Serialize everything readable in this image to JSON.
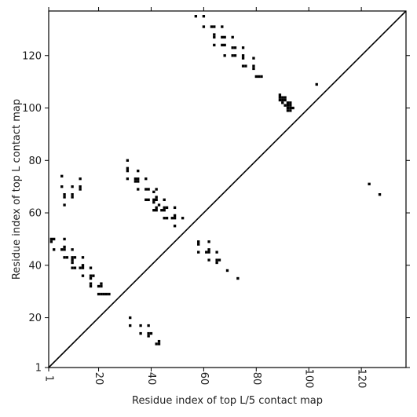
{
  "chart_data": {
    "type": "scatter",
    "xlabel": "Residue index of top L/5 contact map",
    "ylabel": "Residue index of top L contact map",
    "xlim": [
      1,
      137
    ],
    "ylim": [
      1,
      137
    ],
    "xticks": [
      1,
      20,
      40,
      60,
      80,
      100,
      120
    ],
    "yticks": [
      1,
      20,
      40,
      60,
      80,
      100,
      120
    ],
    "grid": false,
    "diagonal_line": {
      "from": [
        1,
        1
      ],
      "to": [
        137,
        137
      ]
    },
    "marker": "square",
    "colors": {
      "points": "#000000",
      "axis": "#000000",
      "line": "#000000"
    },
    "series": [
      {
        "points": [
          [
            57,
            135
          ],
          [
            60,
            135
          ],
          [
            60,
            131
          ],
          [
            63,
            131
          ],
          [
            64,
            131
          ],
          [
            67,
            131
          ],
          [
            64,
            128
          ],
          [
            64,
            127
          ],
          [
            67,
            127
          ],
          [
            68,
            127
          ],
          [
            71,
            127
          ],
          [
            64,
            124
          ],
          [
            67,
            124
          ],
          [
            68,
            124
          ],
          [
            71,
            123
          ],
          [
            72,
            123
          ],
          [
            75,
            123
          ],
          [
            68,
            120
          ],
          [
            71,
            120
          ],
          [
            72,
            120
          ],
          [
            75,
            120
          ],
          [
            75,
            119
          ],
          [
            79,
            119
          ],
          [
            75,
            116
          ],
          [
            76,
            116
          ],
          [
            79,
            116
          ],
          [
            79,
            115
          ],
          [
            80,
            112
          ],
          [
            81,
            112
          ],
          [
            82,
            112
          ],
          [
            103,
            109
          ],
          [
            89,
            105
          ],
          [
            89,
            104
          ],
          [
            90,
            104
          ],
          [
            91,
            104
          ],
          [
            89,
            103
          ],
          [
            90,
            103
          ],
          [
            91,
            103
          ],
          [
            92,
            102
          ],
          [
            93,
            102
          ],
          [
            90,
            102
          ],
          [
            91,
            101
          ],
          [
            92,
            101
          ],
          [
            93,
            101
          ],
          [
            92,
            100
          ],
          [
            93,
            100
          ],
          [
            94,
            100
          ],
          [
            92,
            99
          ],
          [
            93,
            99
          ],
          [
            123,
            71
          ],
          [
            127,
            67
          ],
          [
            31,
            80
          ],
          [
            31,
            77
          ],
          [
            31,
            76
          ],
          [
            35,
            76
          ],
          [
            6,
            74
          ],
          [
            13,
            73
          ],
          [
            31,
            73
          ],
          [
            34,
            73
          ],
          [
            35,
            73
          ],
          [
            38,
            73
          ],
          [
            34,
            72
          ],
          [
            35,
            72
          ],
          [
            13,
            70
          ],
          [
            6,
            70
          ],
          [
            10,
            70
          ],
          [
            13,
            69
          ],
          [
            35,
            69
          ],
          [
            38,
            69
          ],
          [
            39,
            69
          ],
          [
            42,
            69
          ],
          [
            41,
            68
          ],
          [
            7,
            67
          ],
          [
            10,
            67
          ],
          [
            7,
            66
          ],
          [
            10,
            66
          ],
          [
            38,
            65
          ],
          [
            39,
            65
          ],
          [
            41,
            65
          ],
          [
            42,
            65
          ],
          [
            42,
            66
          ],
          [
            45,
            65
          ],
          [
            41,
            64
          ],
          [
            7,
            63
          ],
          [
            43,
            63
          ],
          [
            42,
            62
          ],
          [
            45,
            62
          ],
          [
            46,
            62
          ],
          [
            49,
            62
          ],
          [
            41,
            61
          ],
          [
            42,
            61
          ],
          [
            44,
            61
          ],
          [
            45,
            61
          ],
          [
            49,
            59
          ],
          [
            45,
            58
          ],
          [
            46,
            58
          ],
          [
            48,
            58
          ],
          [
            49,
            58
          ],
          [
            52,
            58
          ],
          [
            49,
            55
          ],
          [
            2,
            50
          ],
          [
            3,
            50
          ],
          [
            7,
            50
          ],
          [
            2,
            49
          ],
          [
            3,
            46
          ],
          [
            6,
            46
          ],
          [
            7,
            46
          ],
          [
            10,
            46
          ],
          [
            7,
            47
          ],
          [
            58,
            49
          ],
          [
            62,
            49
          ],
          [
            58,
            48
          ],
          [
            58,
            45
          ],
          [
            61,
            45
          ],
          [
            62,
            45
          ],
          [
            62,
            46
          ],
          [
            65,
            45
          ],
          [
            7,
            43
          ],
          [
            8,
            43
          ],
          [
            10,
            43
          ],
          [
            11,
            43
          ],
          [
            14,
            43
          ],
          [
            10,
            42
          ],
          [
            10,
            41
          ],
          [
            62,
            42
          ],
          [
            65,
            42
          ],
          [
            66,
            42
          ],
          [
            65,
            41
          ],
          [
            10,
            39
          ],
          [
            11,
            39
          ],
          [
            13,
            39
          ],
          [
            14,
            39
          ],
          [
            17,
            39
          ],
          [
            14,
            40
          ],
          [
            69,
            38
          ],
          [
            14,
            36
          ],
          [
            17,
            36
          ],
          [
            18,
            36
          ],
          [
            17,
            35
          ],
          [
            73,
            35
          ],
          [
            17,
            33
          ],
          [
            17,
            32
          ],
          [
            20,
            32
          ],
          [
            21,
            32
          ],
          [
            21,
            33
          ],
          [
            20,
            29
          ],
          [
            21,
            29
          ],
          [
            22,
            29
          ],
          [
            23,
            29
          ],
          [
            24,
            29
          ],
          [
            32,
            20
          ],
          [
            32,
            17
          ],
          [
            36,
            17
          ],
          [
            39,
            17
          ],
          [
            36,
            14
          ],
          [
            39,
            14
          ],
          [
            40,
            14
          ],
          [
            39,
            13
          ],
          [
            42,
            10
          ],
          [
            43,
            10
          ],
          [
            43,
            11
          ]
        ]
      }
    ]
  }
}
